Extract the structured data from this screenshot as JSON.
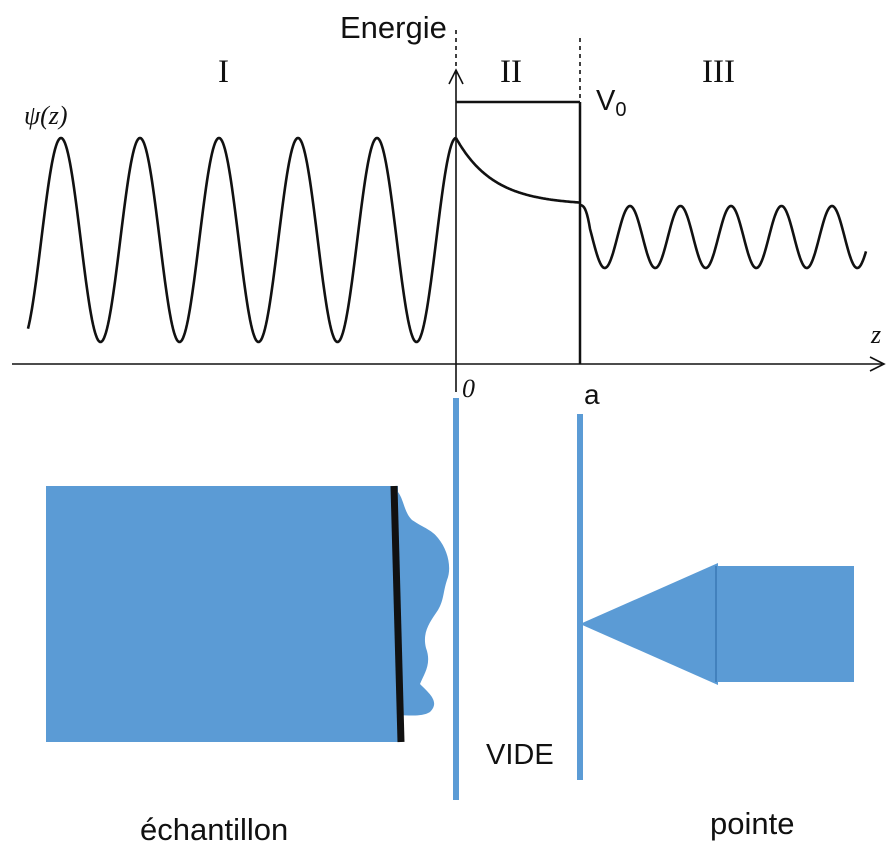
{
  "diagram": {
    "energy_axis_label": "Energie",
    "position_axis_label": "z",
    "wavefunction_label": "ψ(z)",
    "barrier_height_label": "V0",
    "barrier_height_subscript_base": "V",
    "barrier_height_subscript": "0",
    "origin_label": "0",
    "barrier_width_label": "a",
    "regions": [
      "I",
      "II",
      "III"
    ]
  },
  "apparatus": {
    "gap_label": "VIDE",
    "sample_label": "échantillon",
    "tip_label": "pointe"
  },
  "colors": {
    "ink": "#111111",
    "apparatus_blue": "#5b9bd5"
  }
}
